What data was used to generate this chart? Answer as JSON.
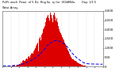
{
  "bar_color": "#dd0000",
  "avg_line_color": "#0000ee",
  "background_color": "#ffffff",
  "grid_color": "#bbbbbb",
  "n_bars": 130,
  "bar_heights": [
    0,
    0,
    0,
    0,
    0,
    0,
    0,
    0,
    0,
    0,
    0,
    0,
    30,
    60,
    80,
    40,
    20,
    50,
    100,
    80,
    60,
    120,
    150,
    200,
    180,
    220,
    300,
    350,
    280,
    320,
    400,
    450,
    380,
    500,
    550,
    480,
    600,
    700,
    750,
    680,
    800,
    900,
    1000,
    1100,
    1200,
    1300,
    800,
    1500,
    1600,
    1400,
    1700,
    1800,
    2000,
    2100,
    2200,
    2400,
    2600,
    2700,
    2800,
    2600,
    2500,
    2700,
    2900,
    2800,
    2600,
    2400,
    2800,
    2900,
    2700,
    2500,
    2600,
    2400,
    2200,
    2000,
    1900,
    1800,
    1700,
    1600,
    1500,
    1400,
    1300,
    1200,
    1100,
    1000,
    900,
    800,
    700,
    600,
    500,
    450,
    400,
    380,
    350,
    320,
    280,
    250,
    220,
    200,
    180,
    160,
    140,
    120,
    100,
    80,
    60,
    50,
    40,
    30,
    20,
    10,
    5,
    2,
    0,
    0,
    0,
    0,
    0,
    0,
    0,
    0,
    0,
    0,
    0,
    0,
    0,
    0,
    0,
    0,
    0,
    0
  ],
  "avg_values": [
    30,
    30,
    30,
    30,
    30,
    30,
    30,
    30,
    30,
    30,
    30,
    30,
    35,
    40,
    45,
    45,
    45,
    48,
    55,
    60,
    65,
    75,
    85,
    95,
    105,
    115,
    130,
    150,
    160,
    175,
    190,
    210,
    225,
    245,
    265,
    280,
    300,
    330,
    360,
    380,
    400,
    430,
    460,
    500,
    540,
    580,
    560,
    630,
    680,
    700,
    740,
    780,
    830,
    880,
    930,
    980,
    1040,
    1100,
    1150,
    1180,
    1210,
    1250,
    1290,
    1310,
    1320,
    1330,
    1360,
    1390,
    1400,
    1400,
    1410,
    1400,
    1390,
    1370,
    1350,
    1330,
    1310,
    1290,
    1260,
    1230,
    1200,
    1160,
    1120,
    1080,
    1030,
    980,
    930,
    870,
    810,
    760,
    700,
    660,
    620,
    580,
    530,
    490,
    450,
    420,
    390,
    360,
    330,
    300,
    270,
    240,
    210,
    190,
    175,
    165,
    155,
    148,
    142,
    138,
    135,
    133,
    131,
    130,
    129,
    128,
    127,
    126,
    125,
    124,
    123,
    122,
    121,
    120,
    119,
    118,
    117,
    116
  ],
  "ylim": [
    0,
    3000
  ],
  "xlim": [
    0,
    130
  ],
  "yticks": [
    0,
    500,
    1000,
    1500,
    2000,
    2500,
    3000
  ],
  "ytick_labels": [
    "0",
    "500",
    "1,000",
    "1,500",
    "2,000",
    "2,500",
    "3,000"
  ]
}
